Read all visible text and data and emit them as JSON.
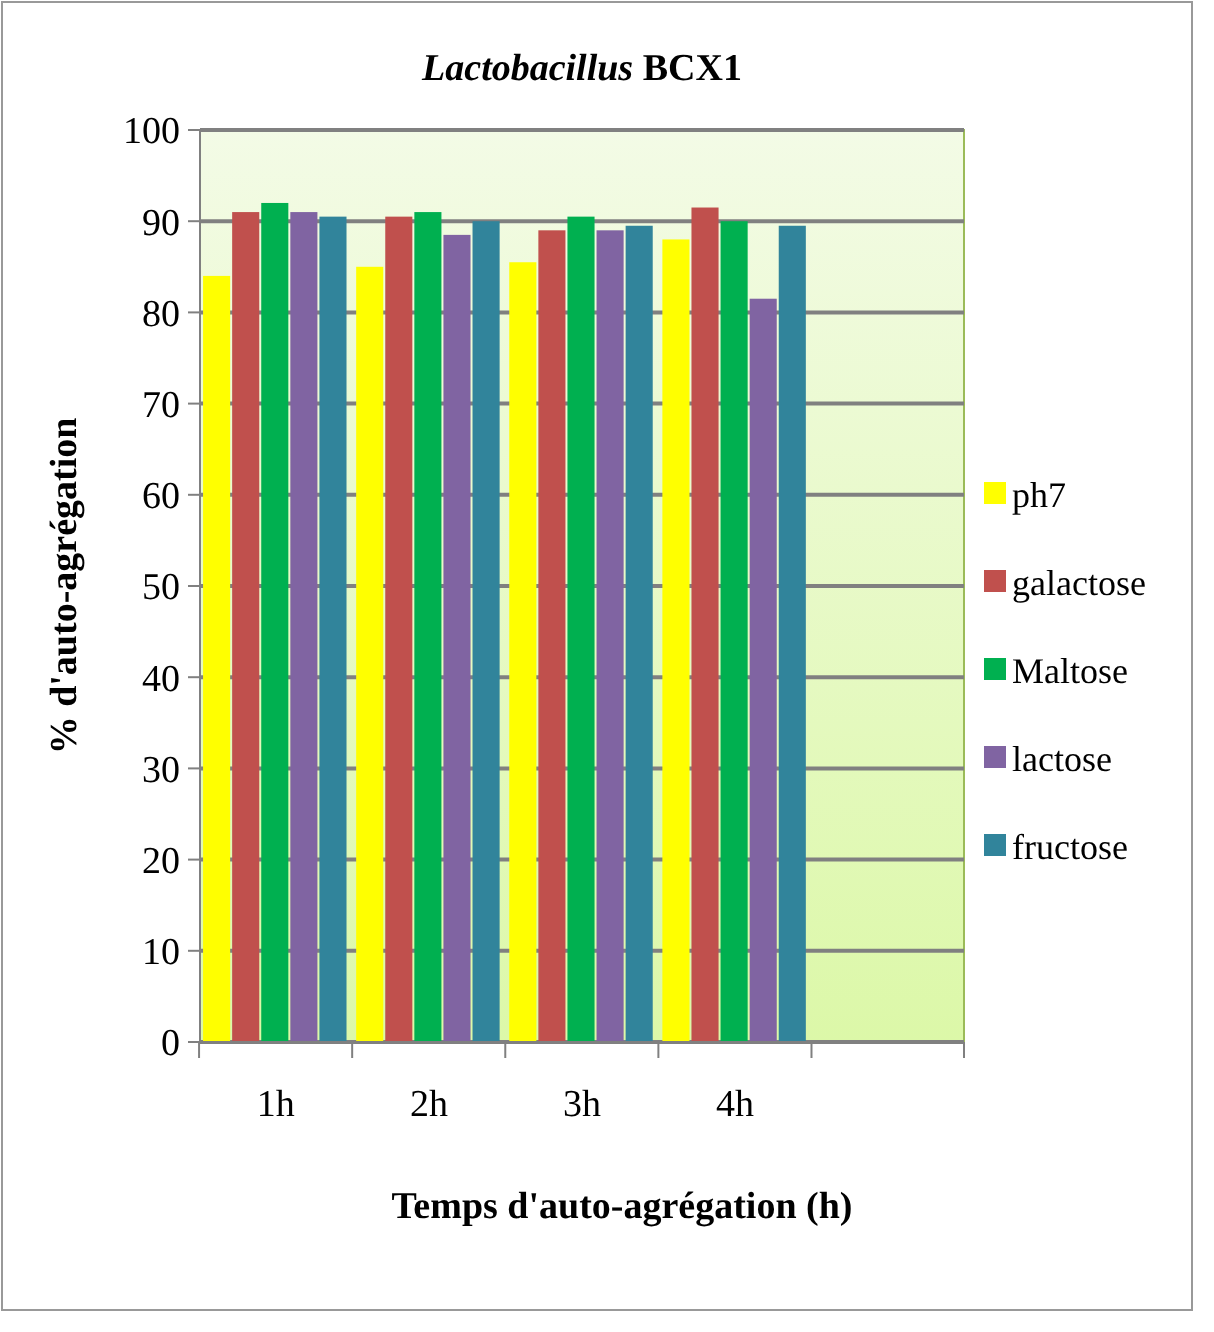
{
  "chart_data": {
    "type": "bar",
    "title": "Lactobacillus BCX1",
    "xlabel": "Temps d'auto-agrégation (h)",
    "ylabel": "% d'auto-agrégation",
    "categories": [
      "1h",
      "2h",
      "3h",
      "4h",
      null
    ],
    "series": [
      {
        "name": "ph7",
        "color": "#ffff00",
        "values": [
          84,
          85,
          85.5,
          88,
          null
        ]
      },
      {
        "name": "galactose",
        "color": "#c0504d",
        "values": [
          91,
          90.5,
          89,
          91.5,
          null
        ]
      },
      {
        "name": "Maltose",
        "color": "#00b050",
        "values": [
          92,
          91,
          90.5,
          90,
          null
        ]
      },
      {
        "name": "lactose",
        "color": "#8064a2",
        "values": [
          91,
          88.5,
          89,
          81.5,
          null
        ]
      },
      {
        "name": "fructose",
        "color": "#31849b",
        "values": [
          90.5,
          90,
          89.5,
          89.5,
          null
        ]
      }
    ],
    "ylim": [
      0,
      100
    ],
    "yticks": [
      0,
      10,
      20,
      30,
      40,
      50,
      60,
      70,
      80,
      90,
      100
    ],
    "grid": "y",
    "legend": "right"
  }
}
